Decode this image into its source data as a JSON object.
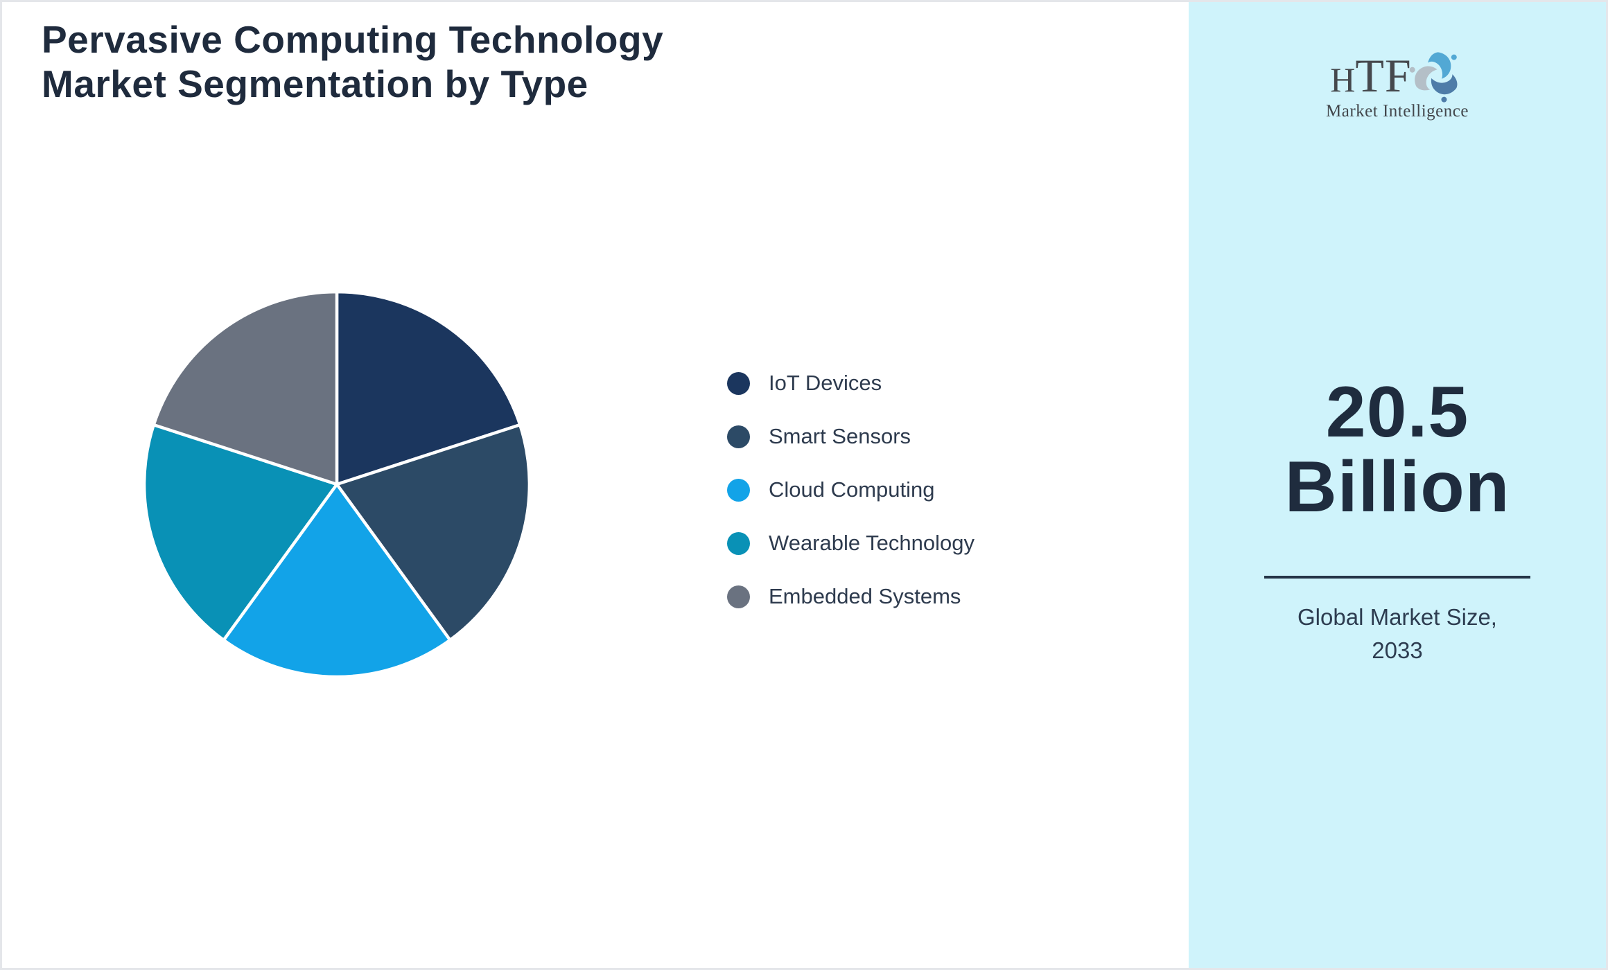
{
  "header": {
    "title_line1": "Pervasive Computing Technology",
    "title_line2": "Market Segmentation by Type",
    "title_color": "#1f2b3d"
  },
  "chart_data": {
    "type": "pie",
    "title": "Pervasive Computing Technology Market Segmentation by Type",
    "categories": [
      "IoT Devices",
      "Smart Sensors",
      "Cloud Computing",
      "Wearable Technology",
      "Embedded Systems"
    ],
    "values": [
      20,
      20,
      20,
      20,
      20
    ],
    "unit": "percent share (five visually equal slices)",
    "colors": [
      "#1b365e",
      "#2c4a66",
      "#12a3e8",
      "#0991b6",
      "#6a7280"
    ],
    "legend_position": "right",
    "start_angle_deg": 0,
    "direction": "clockwise",
    "slice_border_color": "#ffffff"
  },
  "sidebar": {
    "background": "#cff3fb",
    "logo": {
      "brand_h": "H",
      "brand_tf": "TF",
      "tagline": "Market Intelligence",
      "swirl_colors": [
        "#52a8d4",
        "#b4bfc7",
        "#4e7ca8"
      ]
    },
    "market_size_value_line1": "20.5",
    "market_size_value_line2": "Billion",
    "caption_line1": "Global Market Size,",
    "caption_line2": "2033",
    "text_color": "#1f2c3e"
  },
  "page": {
    "border_color": "#e4e6ea",
    "main_background": "#ffffff"
  }
}
